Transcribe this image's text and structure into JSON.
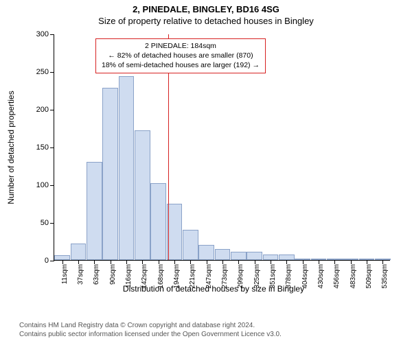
{
  "title_line1": "2, PINEDALE, BINGLEY, BD16 4SG",
  "title_line2": "Size of property relative to detached houses in Bingley",
  "ylabel": "Number of detached properties",
  "xlabel": "Distribution of detached houses by size in Bingley",
  "footer_line1": "Contains HM Land Registry data © Crown copyright and database right 2024.",
  "footer_line2": "Contains public sector information licensed under the Open Government Licence v3.0.",
  "chart": {
    "type": "histogram",
    "ylim": [
      0,
      300
    ],
    "ytick_step": 50,
    "bar_fill": "#cfdcf0",
    "bar_stroke": "#8aa2c8",
    "background": "#ffffff",
    "marker": {
      "value": 184,
      "color": "#d62020"
    },
    "annotation": {
      "border_color": "#d62020",
      "line1": "2 PINEDALE: 184sqm",
      "line2": "← 82% of detached houses are smaller (870)",
      "line3": "18% of semi-detached houses are larger (192) →"
    },
    "categories": [
      "11sqm",
      "37sqm",
      "63sqm",
      "90sqm",
      "116sqm",
      "142sqm",
      "168sqm",
      "194sqm",
      "221sqm",
      "247sqm",
      "273sqm",
      "299sqm",
      "325sqm",
      "351sqm",
      "378sqm",
      "404sqm",
      "430sqm",
      "456sqm",
      "483sqm",
      "509sqm",
      "535sqm"
    ],
    "values": [
      6,
      22,
      130,
      228,
      244,
      172,
      102,
      75,
      40,
      20,
      15,
      11,
      11,
      7,
      7,
      2,
      2,
      0,
      1,
      1,
      0
    ]
  }
}
